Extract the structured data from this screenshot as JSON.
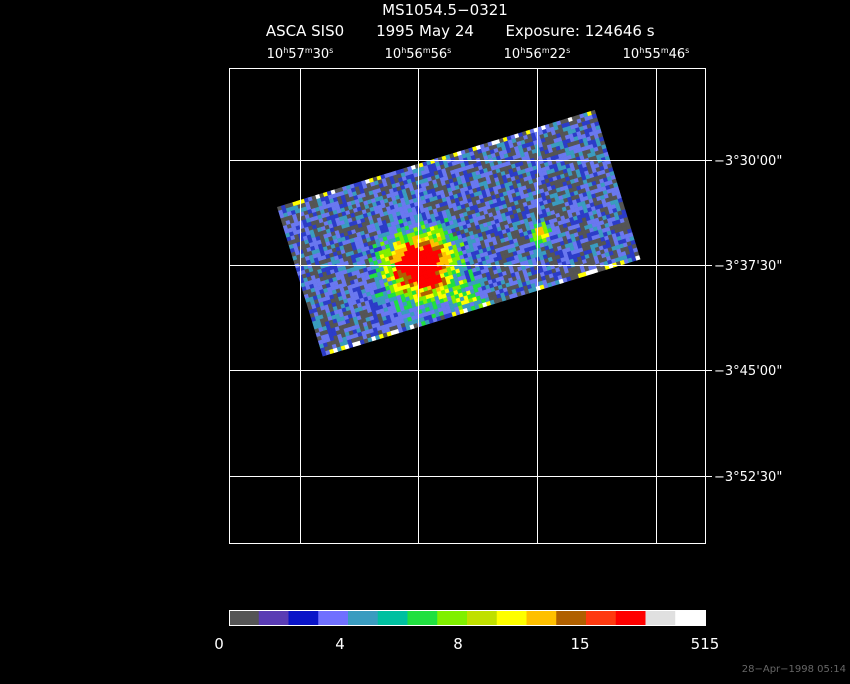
{
  "header": {
    "title": "MS1054.5−0321",
    "instrument": "ASCA SIS0",
    "date": "1995 May 24",
    "exposure": "Exposure: 124646 s"
  },
  "ra_ticks": [
    [
      "10",
      "h",
      "57",
      "m",
      "30",
      "s"
    ],
    [
      "10",
      "h",
      "56",
      "m",
      "56",
      "s"
    ],
    [
      "10",
      "h",
      "56",
      "m",
      "22",
      "s"
    ],
    [
      "10",
      "h",
      "55",
      "m",
      "46",
      "s"
    ]
  ],
  "dec_ticks": [
    "−3°30'00\"",
    "−3°37'30\"",
    "−3°45'00\"",
    "−3°52'30\""
  ],
  "colorbar_labels": [
    "0",
    "4",
    "8",
    "15",
    "515"
  ],
  "timestamp": "28−Apr−1998 05:14"
}
